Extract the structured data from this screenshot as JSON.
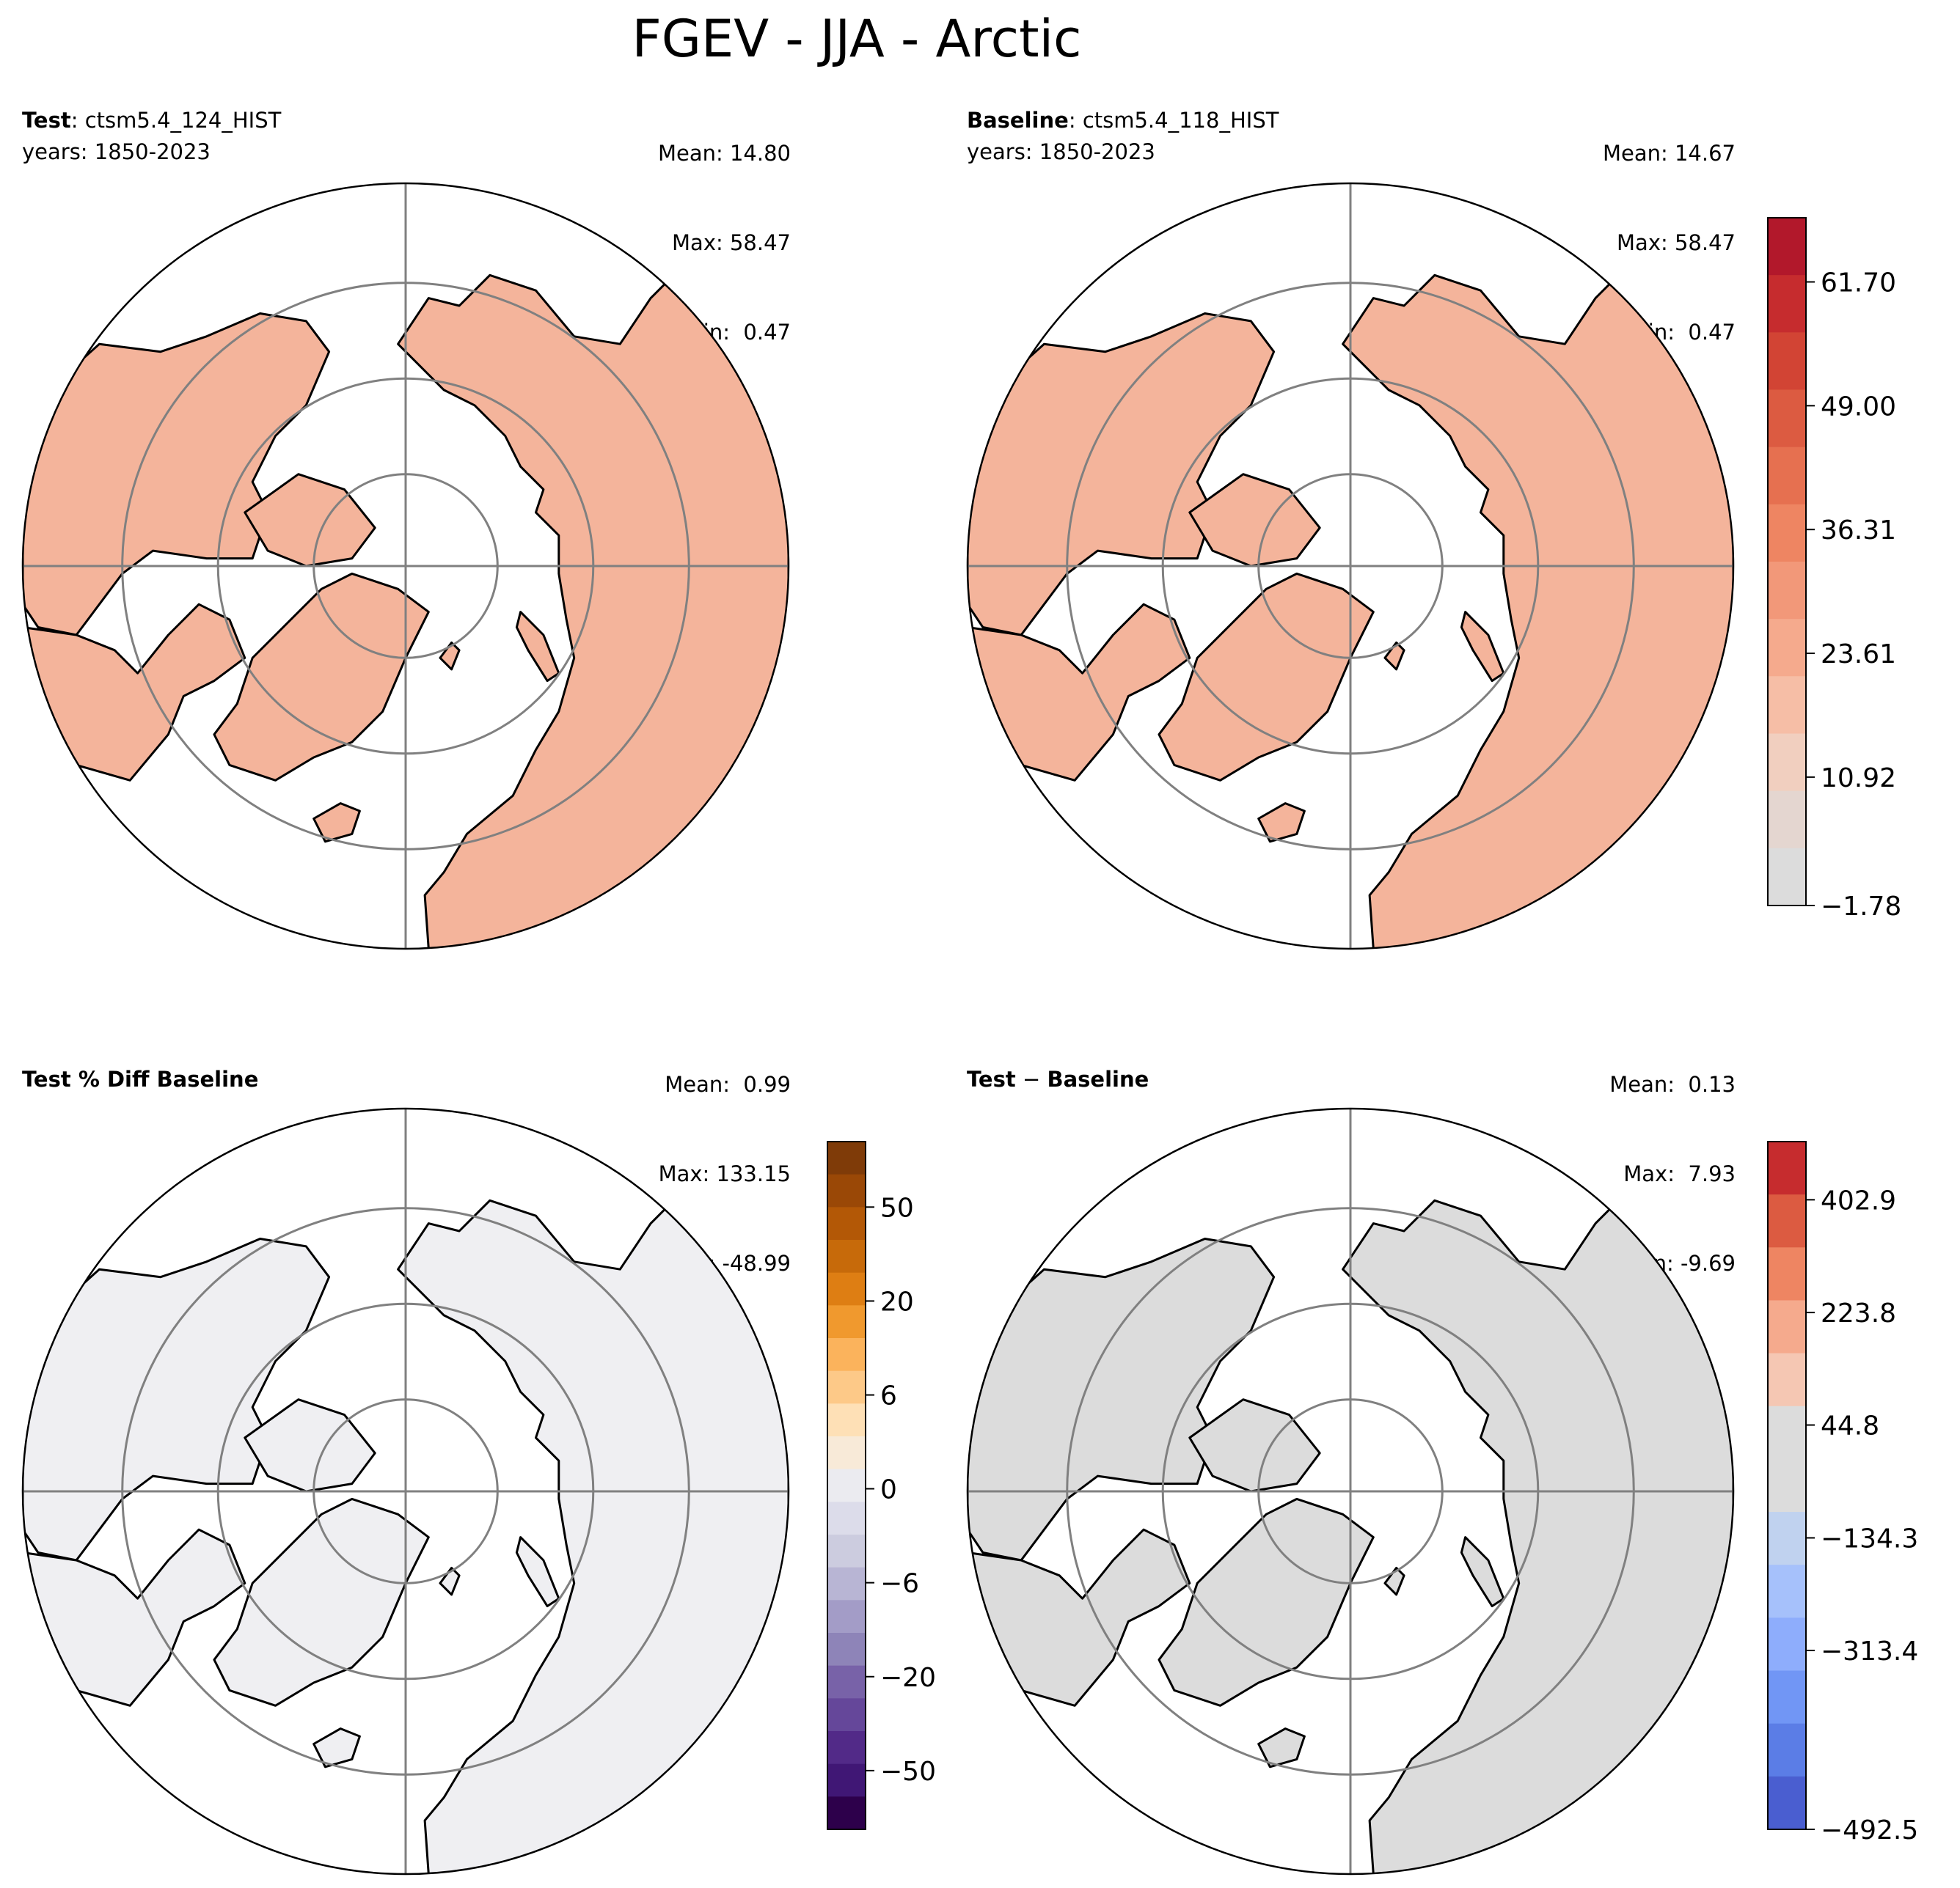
{
  "figure": {
    "title": "FGEV - JJA - Arctic"
  },
  "panels": [
    {
      "key": "test",
      "title_bold": "Test",
      "title_sep": ": ",
      "title_rest": "ctsm5.4_124_HIST",
      "subtitle": "years: 1850-2023",
      "stats": {
        "mean": "Mean: 14.80",
        "max": "Max: 58.47",
        "min": "Min:  0.47"
      }
    },
    {
      "key": "baseline",
      "title_bold": "Baseline",
      "title_sep": ": ",
      "title_rest": "ctsm5.4_118_HIST",
      "subtitle": "years: 1850-2023",
      "stats": {
        "mean": "Mean: 14.67",
        "max": "Max: 58.47",
        "min": "Min:  0.47"
      }
    },
    {
      "key": "pctdiff",
      "title_bold": "Test % Diff Baseline",
      "title_sep": "",
      "title_rest": "",
      "subtitle": "",
      "stats": {
        "mean": "Mean:  0.99",
        "max": "Max: 133.15",
        "min": "Min: -48.99"
      }
    },
    {
      "key": "diff",
      "title_bold": "Test",
      "title_sep": " − ",
      "title_rest": "Baseline",
      "title_rest_bold": true,
      "subtitle": "",
      "stats": {
        "mean": "Mean:  0.13",
        "max": "Max:  7.93",
        "min": "Min: -9.69"
      }
    }
  ],
  "colorbars": {
    "main": {
      "labels": [
        "61.70",
        "49.00",
        "36.31",
        "23.61",
        "10.92",
        "−1.78"
      ],
      "colors": [
        "#b2182b",
        "#c62c2e",
        "#d24434",
        "#dc5b41",
        "#e67050",
        "#ee8562",
        "#f29879",
        "#f5aa8d",
        "#f6bea6",
        "#f1cfbf",
        "#e4d6d0",
        "#dcdcdc"
      ]
    },
    "pctdiff": {
      "labels": [
        "50",
        "20",
        "6",
        "0",
        "−6",
        "−20",
        "−50"
      ],
      "colors": [
        "#7f3b08",
        "#9a4806",
        "#b35806",
        "#c76a0a",
        "#de7e13",
        "#f0992e",
        "#fbb35c",
        "#fdc988",
        "#fee0b6",
        "#f8ead8",
        "#ebebf0",
        "#dcdcea",
        "#ccccdf",
        "#b8b5d4",
        "#a39cc7",
        "#8e84b8",
        "#7862a8",
        "#65479a",
        "#522a88",
        "#401775",
        "#2d004b"
      ]
    },
    "diff": {
      "labels": [
        "402.9",
        "223.8",
        "44.8",
        "−134.3",
        "−313.4",
        "−492.5"
      ],
      "colors": [
        "#c62c2e",
        "#dc5b41",
        "#ee8562",
        "#f5aa8d",
        "#f5c7b3",
        "#dcdcdc",
        "#dcdcdc",
        "#c0d2ef",
        "#a6c1fb",
        "#8eadfc",
        "#7196f5",
        "#5b7de6",
        "#4a5ed0"
      ]
    }
  },
  "map": {
    "projection": "north-polar-stereographic",
    "graticule": "gray",
    "coastline": "black",
    "fills": {
      "test": "#f4b49b",
      "baseline": "#f4b49b",
      "pctdiff": "#efeff2",
      "diff": "#dcdcdc"
    }
  }
}
